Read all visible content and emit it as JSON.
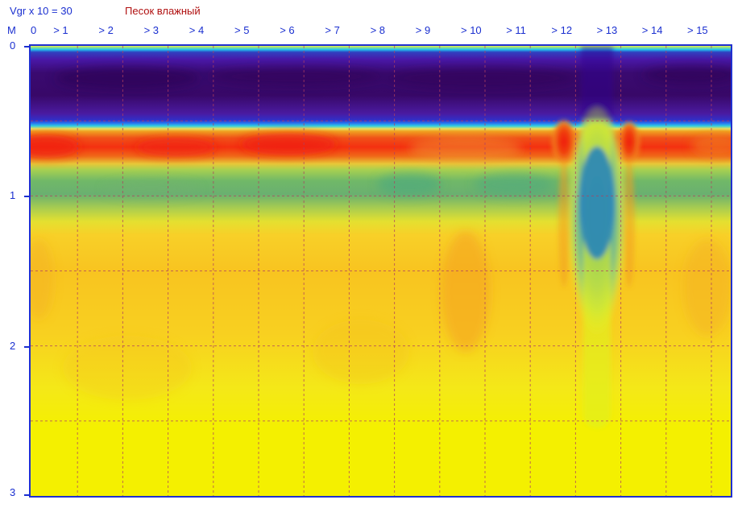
{
  "header": {
    "velocity_label": "Vgr x 10 = 30",
    "soil_label": "Песок влажный"
  },
  "x_axis": {
    "unit_label": "M",
    "ticks": [
      "0",
      "> 1",
      "> 2",
      "> 3",
      "> 4",
      "> 5",
      "> 6",
      "> 7",
      "> 8",
      "> 9",
      "> 10",
      "> 11",
      "> 12",
      "> 13",
      "> 14",
      "> 15"
    ]
  },
  "y_axis": {
    "ticks": [
      "0",
      "1",
      "2",
      "3"
    ]
  },
  "colors": {
    "axis_text": "#1a2fd0",
    "soil_text": "#b01010",
    "frame": "#2030d0",
    "grid": "#b04060"
  },
  "chart_data": {
    "type": "heatmap",
    "x_range": [
      0,
      15.5
    ],
    "y_range": [
      0,
      3
    ],
    "y_reversed": true,
    "grid": true,
    "colormap": [
      "yellow",
      "orange",
      "red",
      "green",
      "cyan",
      "blue",
      "dark-violet"
    ],
    "bands": [
      {
        "depth_from": 0.0,
        "depth_to": 0.05,
        "color": "cyan"
      },
      {
        "depth_from": 0.05,
        "depth_to": 0.5,
        "color": "dark-violet"
      },
      {
        "depth_from": 0.55,
        "depth_to": 0.75,
        "color": "red"
      },
      {
        "depth_from": 0.8,
        "depth_to": 1.1,
        "color": "green"
      },
      {
        "depth_from": 1.2,
        "depth_to": 2.5,
        "color": "orange-yellow"
      },
      {
        "depth_from": 2.5,
        "depth_to": 3.0,
        "color": "yellow"
      }
    ],
    "anomaly": {
      "x_from": 12.0,
      "x_to": 13.3,
      "depth_from": 0.5,
      "depth_to": 2.5
    }
  }
}
